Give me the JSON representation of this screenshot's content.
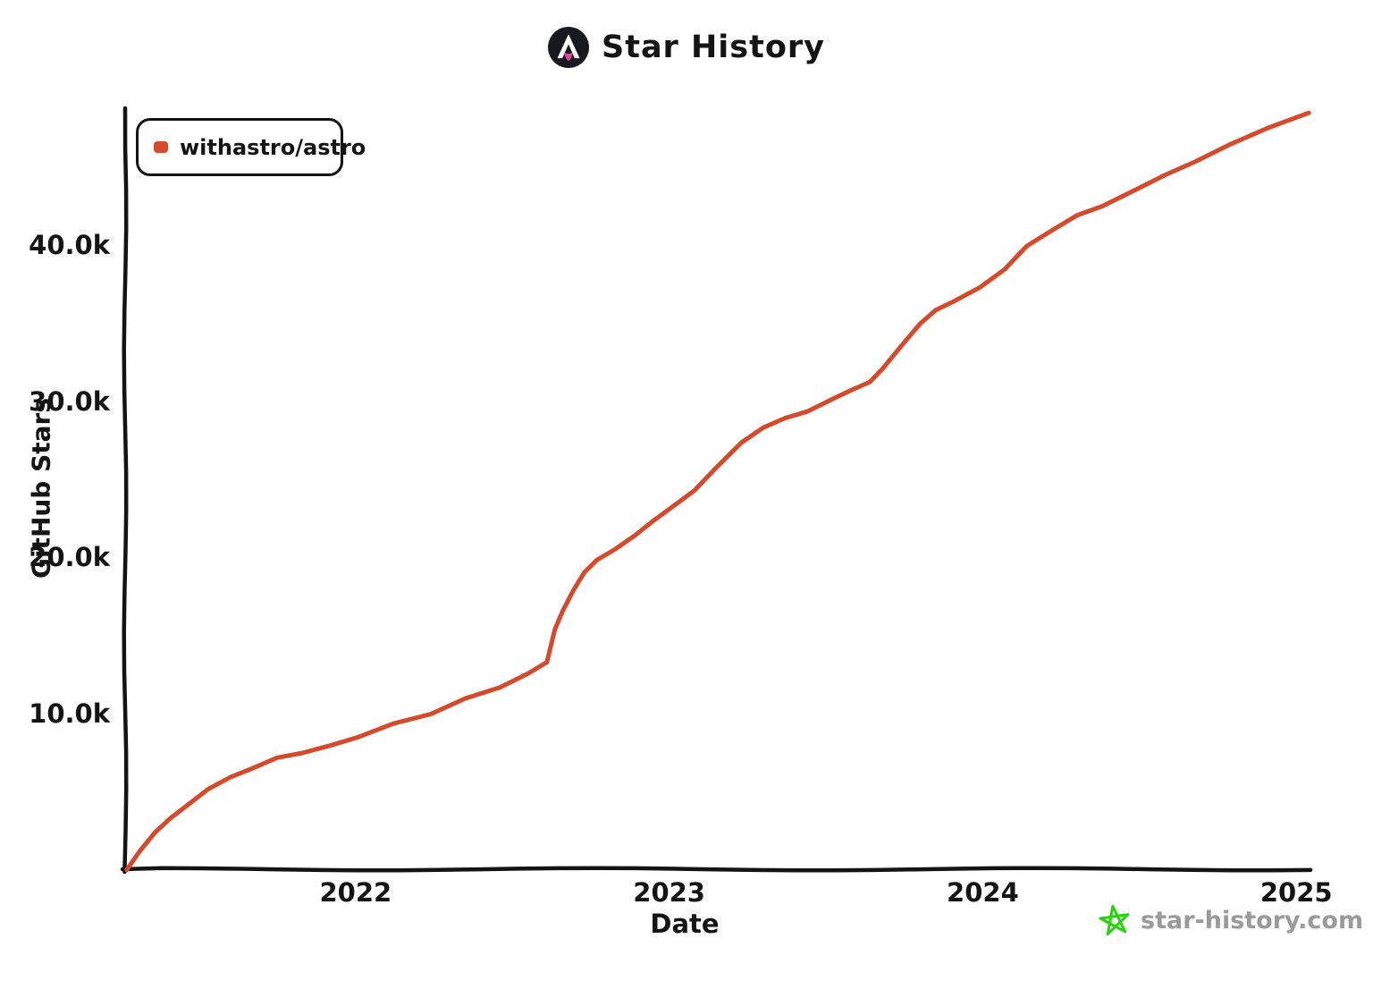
{
  "chart_data": {
    "type": "line",
    "title": "Star History",
    "xlabel": "Date",
    "ylabel": "GitHub Stars",
    "watermark": "star-history.com",
    "legend_position": "top-left",
    "grid": false,
    "style": "hand-drawn-xkcd",
    "colors": {
      "line": "#d6492b",
      "axis": "#141414",
      "watermark_text": "#9a9a9a",
      "watermark_star": "#25d40b",
      "logo_circle": "#17191e",
      "logo_flame": "#e2499d"
    },
    "icons": {
      "logo": "astro-logo-icon",
      "watermark": "star-icon"
    },
    "x_range": [
      2021.265,
      2025.045
    ],
    "y_range": [
      0,
      48800
    ],
    "x_ticks": [
      {
        "value": 2022,
        "label": "2022"
      },
      {
        "value": 2023,
        "label": "2023"
      },
      {
        "value": 2024,
        "label": "2024"
      },
      {
        "value": 2025,
        "label": "2025"
      }
    ],
    "y_ticks": [
      {
        "value": 40000,
        "label": "40.0k"
      },
      {
        "value": 30000,
        "label": "30.0k"
      },
      {
        "value": 20000,
        "label": "20.0k"
      },
      {
        "value": 10000,
        "label": "10.0k"
      }
    ],
    "legend": [
      {
        "name": "withastro/astro",
        "color": "#d6492b"
      }
    ],
    "series": [
      {
        "name": "withastro/astro",
        "color": "#d6492b",
        "x_unit": "decimal_year",
        "y_unit": "stars",
        "points": [
          [
            2021.27,
            0
          ],
          [
            2021.31,
            1100
          ],
          [
            2021.36,
            2300
          ],
          [
            2021.41,
            3300
          ],
          [
            2021.46,
            4100
          ],
          [
            2021.53,
            5100
          ],
          [
            2021.6,
            5900
          ],
          [
            2021.67,
            6500
          ],
          [
            2021.75,
            7100
          ],
          [
            2021.83,
            7500
          ],
          [
            2021.92,
            7900
          ],
          [
            2022.01,
            8500
          ],
          [
            2022.12,
            9300
          ],
          [
            2022.24,
            10000
          ],
          [
            2022.35,
            10900
          ],
          [
            2022.46,
            11700
          ],
          [
            2022.55,
            12500
          ],
          [
            2022.61,
            13300
          ],
          [
            2022.635,
            15400
          ],
          [
            2022.66,
            16600
          ],
          [
            2022.695,
            17900
          ],
          [
            2022.73,
            19000
          ],
          [
            2022.77,
            19800
          ],
          [
            2022.83,
            20600
          ],
          [
            2022.89,
            21400
          ],
          [
            2022.95,
            22300
          ],
          [
            2023.0,
            23100
          ],
          [
            2023.08,
            24300
          ],
          [
            2023.15,
            25700
          ],
          [
            2023.23,
            27400
          ],
          [
            2023.3,
            28300
          ],
          [
            2023.37,
            28900
          ],
          [
            2023.44,
            29400
          ],
          [
            2023.52,
            30100
          ],
          [
            2023.58,
            30700
          ],
          [
            2023.64,
            31300
          ],
          [
            2023.68,
            32100
          ],
          [
            2023.74,
            33500
          ],
          [
            2023.8,
            35000
          ],
          [
            2023.85,
            35900
          ],
          [
            2023.91,
            36400
          ],
          [
            2023.99,
            37300
          ],
          [
            2024.07,
            38500
          ],
          [
            2024.14,
            39900
          ],
          [
            2024.22,
            41000
          ],
          [
            2024.3,
            41900
          ],
          [
            2024.38,
            42500
          ],
          [
            2024.48,
            43500
          ],
          [
            2024.58,
            44500
          ],
          [
            2024.68,
            45400
          ],
          [
            2024.79,
            46500
          ],
          [
            2024.91,
            47500
          ],
          [
            2025.04,
            48550
          ]
        ]
      }
    ]
  }
}
